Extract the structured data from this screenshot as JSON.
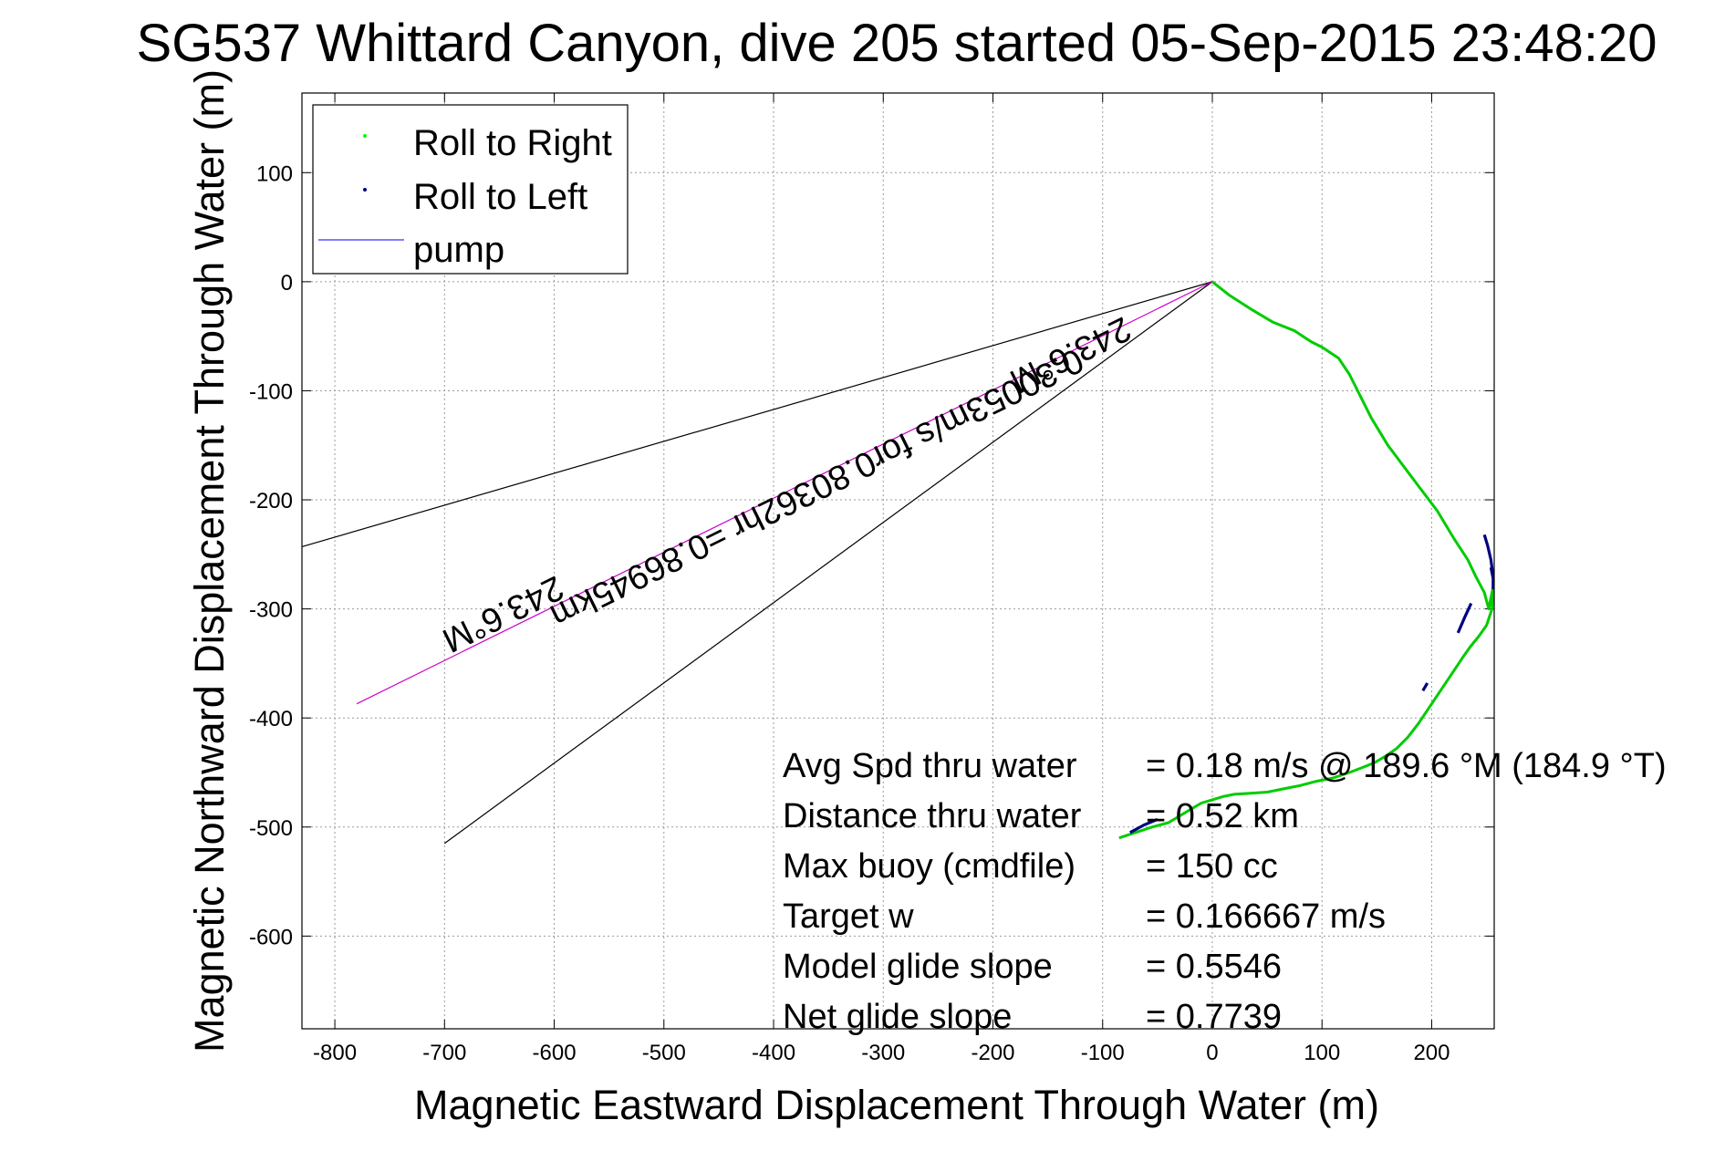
{
  "chart_data": {
    "type": "line",
    "title": "SG537 Whittard Canyon, dive 205 started 05-Sep-2015 23:48:20",
    "xlabel": "Magnetic Eastward Displacement Through Water (m)",
    "ylabel": "Magnetic Northward Displacement Through Water (m)",
    "xlim": [
      -830,
      257
    ],
    "ylim": [
      -685,
      173
    ],
    "xticks": [
      -800,
      -700,
      -600,
      -500,
      -400,
      -300,
      -200,
      -100,
      0,
      100,
      200
    ],
    "yticks": [
      100,
      0,
      -100,
      -200,
      -300,
      -400,
      -500,
      -600
    ],
    "grid": true,
    "legend": {
      "position": "top-left",
      "entries": [
        {
          "label": "Roll to Right",
          "color": "#00ff00",
          "marker": "dot"
        },
        {
          "label": "Roll to Left",
          "color": "#000080",
          "marker": "dot"
        },
        {
          "label": "pump",
          "color": "#3333ff",
          "marker": "line"
        }
      ]
    },
    "series": [
      {
        "name": "Roll to Right",
        "color": "#00cc00",
        "x": [
          0,
          15,
          35,
          55,
          75,
          90,
          100,
          115,
          125,
          135,
          145,
          160,
          175,
          190,
          205,
          220,
          233,
          240,
          248,
          252,
          256,
          255,
          250,
          243,
          235,
          228,
          218,
          208,
          198,
          188,
          178,
          168,
          158,
          148,
          138,
          125,
          110,
          95,
          80,
          65,
          50,
          35,
          20,
          10,
          0,
          -10,
          -20,
          -30,
          -40,
          -55,
          -70,
          -85
        ],
        "y": [
          0,
          -12,
          -25,
          -37,
          -45,
          -55,
          -60,
          -70,
          -85,
          -105,
          -125,
          -150,
          -170,
          -190,
          -210,
          -235,
          -255,
          -270,
          -285,
          -300,
          -280,
          -300,
          -315,
          -325,
          -335,
          -345,
          -360,
          -375,
          -390,
          -405,
          -418,
          -428,
          -435,
          -441,
          -445,
          -450,
          -455,
          -458,
          -462,
          -465,
          -468,
          -469,
          -470,
          -472,
          -475,
          -478,
          -484,
          -490,
          -496,
          -500,
          -505,
          -510
        ]
      },
      {
        "name": "Roll to Left",
        "color": "#000080",
        "segments": [
          {
            "x": [
              248,
              251,
              254,
              256
            ],
            "y": [
              -232,
              -242,
              -255,
              -270
            ]
          },
          {
            "x": [
              254,
              256,
              256
            ],
            "y": [
              -262,
              -272,
              -282
            ]
          },
          {
            "x": [
              236,
              230,
              224
            ],
            "y": [
              -295,
              -308,
              -322
            ]
          },
          {
            "x": [
              196,
              192
            ],
            "y": [
              -368,
              -375
            ]
          },
          {
            "x": [
              -50,
              -62,
              -75
            ],
            "y": [
              -493,
              -498,
              -505
            ]
          }
        ]
      },
      {
        "name": "current",
        "color": "#cc00cc",
        "heading": "243.6°M",
        "x": [
          0,
          -780
        ],
        "y": [
          0,
          -387
        ]
      },
      {
        "name": "cone-upper",
        "color": "#000000",
        "x": [
          0,
          -830
        ],
        "y": [
          0,
          -243
        ]
      },
      {
        "name": "cone-lower",
        "color": "#000000",
        "x": [
          0,
          -700
        ],
        "y": [
          0,
          -515
        ]
      }
    ],
    "annotations": {
      "current_label": "0.30053m/s for0.80362hr =0.86945km",
      "heading_near": "243.6°M",
      "heading_far": "243.6°M"
    },
    "stats": [
      {
        "label": "Avg Spd thru water",
        "value": "=  0.18 m/s @ 189.6 °M (184.9 °T)"
      },
      {
        "label": "Distance thru water",
        "value": "=  0.52 km"
      },
      {
        "label": "Max buoy (cmdfile)",
        "value": "= 150 cc"
      },
      {
        "label": "Target w",
        "value": "= 0.166667 m/s"
      },
      {
        "label": "Model glide slope",
        "value": "= 0.5546"
      },
      {
        "label": "Net glide slope",
        "value": "= 0.7739"
      }
    ]
  }
}
